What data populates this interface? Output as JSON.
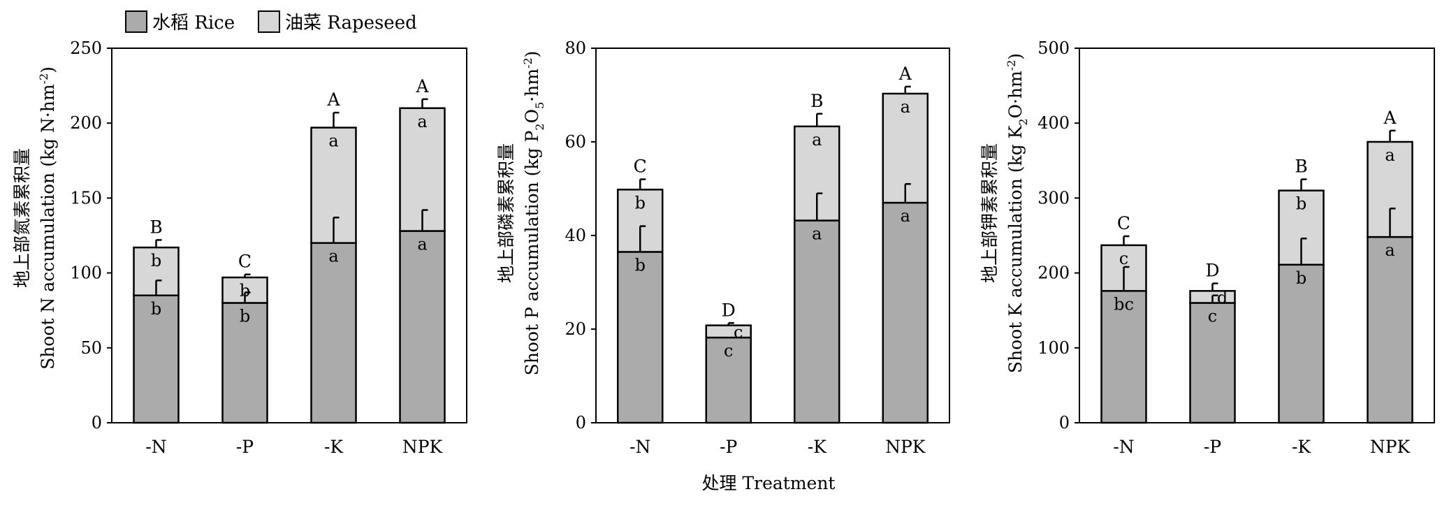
{
  "legend": {
    "rice": "水稻 Rice",
    "rapeseed": "油菜 Rapeseed"
  },
  "xlabel_shared": "处理 Treatment",
  "colors": {
    "rice": "#ababab",
    "rapeseed": "#d7d7d7",
    "stroke": "#000000"
  },
  "chart_data": [
    {
      "type": "bar",
      "stacked": true,
      "categories": [
        "-N",
        "-P",
        "-K",
        "NPK"
      ],
      "ylabel_cn": "地上部氮素累积量",
      "ylabel_en": "Shoot N accumulation (kg N·hm",
      "ylabel_sup": "-2",
      "ylabel_end": ")",
      "ylim": [
        0,
        250
      ],
      "yticks": [
        0,
        50,
        100,
        150,
        200,
        250
      ],
      "series": [
        {
          "name": "水稻 Rice",
          "values": [
            85,
            80,
            120,
            128
          ],
          "errors": [
            10,
            7,
            17,
            14
          ],
          "labels": [
            "b",
            "b",
            "a",
            "a"
          ]
        },
        {
          "name": "油菜 Rapeseed",
          "values": [
            32,
            17,
            77,
            82
          ],
          "errors": [
            5,
            2,
            10,
            6
          ],
          "labels": [
            "b",
            "b",
            "a",
            "a"
          ]
        }
      ],
      "total_labels": [
        "B",
        "C",
        "A",
        "A"
      ]
    },
    {
      "type": "bar",
      "stacked": true,
      "categories": [
        "-N",
        "-P",
        "-K",
        "NPK"
      ],
      "ylabel_cn": "地上部磷素累积量",
      "ylabel_en": "Shoot P accumulation (kg P",
      "ylabel_sub1": "2",
      "ylabel_mid": "O",
      "ylabel_sub2": "5",
      "ylabel_mid2": "·hm",
      "ylabel_sup": "-2",
      "ylabel_end": ")",
      "ylim": [
        0,
        80
      ],
      "yticks": [
        0,
        20,
        40,
        60,
        80
      ],
      "series": [
        {
          "name": "水稻 Rice",
          "values": [
            36.5,
            18.2,
            43.2,
            47
          ],
          "errors": [
            5.5,
            0,
            5.8,
            4
          ],
          "labels": [
            "b",
            "c",
            "a",
            "a"
          ]
        },
        {
          "name": "油菜 Rapeseed",
          "values": [
            13.3,
            2.6,
            20.1,
            23.3
          ],
          "errors": [
            2.2,
            0.5,
            2.7,
            1.5
          ],
          "labels": [
            "b",
            "c",
            "a",
            "a"
          ]
        }
      ],
      "total_labels": [
        "C",
        "D",
        "B",
        "A"
      ]
    },
    {
      "type": "bar",
      "stacked": true,
      "categories": [
        "-N",
        "-P",
        "-K",
        "NPK"
      ],
      "ylabel_cn": "地上部钾素累积量",
      "ylabel_en": "Shoot K accumulation (kg K",
      "ylabel_sub1": "2",
      "ylabel_mid": "O·hm",
      "ylabel_sup": "-2",
      "ylabel_end": ")",
      "ylim": [
        0,
        500
      ],
      "yticks": [
        0,
        100,
        200,
        300,
        400,
        500
      ],
      "series": [
        {
          "name": "水稻 Rice",
          "values": [
            176,
            160,
            211,
            248
          ],
          "errors": [
            32,
            10,
            35,
            38
          ],
          "labels": [
            "bc",
            "c",
            "b",
            "a"
          ]
        },
        {
          "name": "油菜 Rapeseed",
          "values": [
            61,
            16,
            99,
            127
          ],
          "errors": [
            12,
            10,
            15,
            15
          ],
          "labels": [
            "c",
            "d",
            "b",
            "a"
          ]
        }
      ],
      "total_labels": [
        "C",
        "D",
        "B",
        "A"
      ]
    }
  ]
}
